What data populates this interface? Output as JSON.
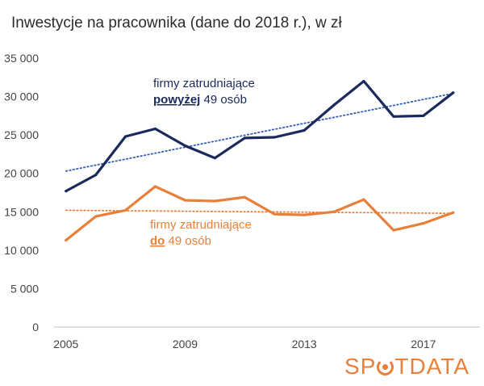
{
  "chart_data": {
    "type": "line",
    "title": "Inwestycje na pracownika (dane do 2018 r.), w zł",
    "xlabel": "",
    "ylabel": "",
    "x": [
      2005,
      2006,
      2007,
      2008,
      2009,
      2010,
      2011,
      2012,
      2013,
      2014,
      2015,
      2016,
      2017,
      2018
    ],
    "x_tick_labels": [
      "2005",
      "2009",
      "2013",
      "2017"
    ],
    "x_tick_values": [
      2005,
      2009,
      2013,
      2017
    ],
    "xlim": [
      2004.6,
      2018.9
    ],
    "ylim": [
      0,
      35000
    ],
    "y_ticks": [
      0,
      5000,
      10000,
      15000,
      20000,
      25000,
      30000,
      35000
    ],
    "y_tick_labels": [
      "0",
      "5 000",
      "10 000",
      "15 000",
      "20 000",
      "25 000",
      "30 000",
      "35 000"
    ],
    "grid": false,
    "series": [
      {
        "key": "large",
        "color": "#1b2a5c",
        "values": [
          17700,
          19800,
          24800,
          25800,
          23600,
          22000,
          24600,
          24700,
          25600,
          28900,
          32000,
          27400,
          27500,
          30500
        ],
        "trend": [
          20300,
          30400
        ],
        "trend_color": "#2f5fb3",
        "label_line1": "firmy zatrudniające",
        "label_bold": "powyżej",
        "label_rest": " 49 osób"
      },
      {
        "key": "small",
        "color": "#e8803a",
        "values": [
          11300,
          14400,
          15200,
          18300,
          16500,
          16400,
          16900,
          14700,
          14600,
          15000,
          16600,
          12600,
          13500,
          14900
        ],
        "trend": [
          15200,
          14800
        ],
        "trend_color": "#e8803a",
        "label_line1": "firmy zatrudniające",
        "label_bold": "do",
        "label_rest": " 49 osób"
      }
    ]
  },
  "brand": {
    "prefix": "SP",
    "suffix": "TDATA"
  }
}
